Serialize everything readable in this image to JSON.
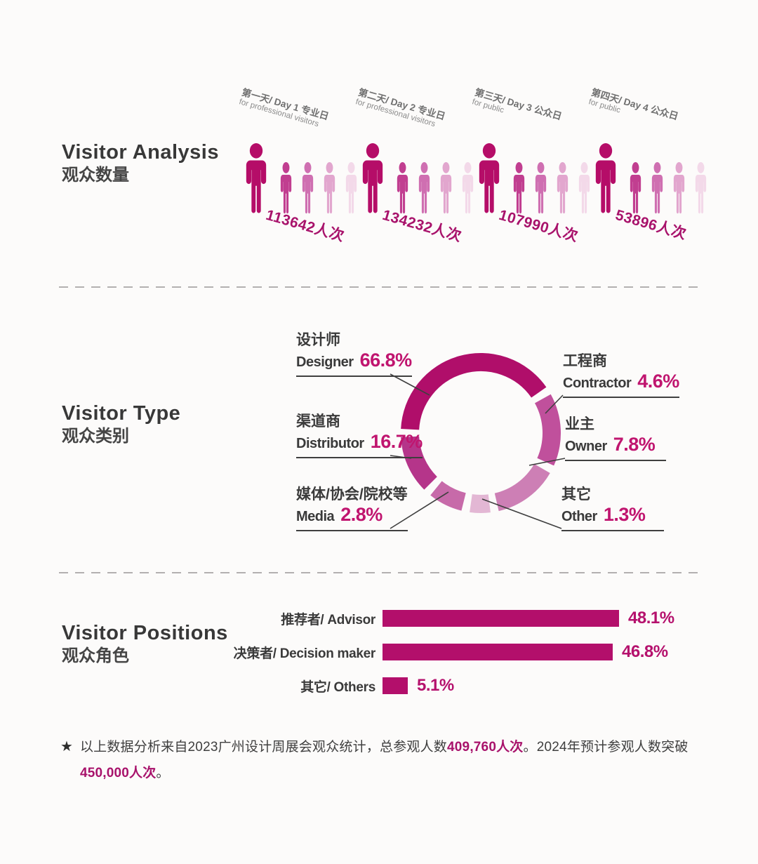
{
  "colors": {
    "accent_dark": "#b50d68",
    "accent": "#c0156f",
    "bar_fill": "#b30f6b",
    "title_text": "#383838",
    "callout_line": "#3f3f3f"
  },
  "sections": {
    "visitor_analysis": {
      "title_en": "Visitor Analysis",
      "title_zh": "观众数量",
      "days": [
        {
          "label_zh": "第一天/ Day 1 专业日",
          "label_en": "for professional visitors",
          "count": "113642人次"
        },
        {
          "label_zh": "第二天/ Day 2 专业日",
          "label_en": "for professional visitors",
          "count": "134232人次"
        },
        {
          "label_zh": "第三天/ Day 3 公众日",
          "label_en": "for public",
          "count": "107990人次"
        },
        {
          "label_zh": "第四天/ Day 4 公众日",
          "label_en": "for public",
          "count": "53896人次"
        }
      ],
      "people_colors": [
        "#b50d68",
        "#c13e90",
        "#cf6fb1",
        "#e2a6ce",
        "#f3d9e9"
      ]
    },
    "visitor_type": {
      "title_en": "Visitor Type",
      "title_zh": "观众类别",
      "labels": [
        {
          "zh": "设计师",
          "en": "Designer",
          "value": "66.8%"
        },
        {
          "zh": "工程商",
          "en": "Contractor",
          "value": "4.6%"
        },
        {
          "zh": "渠道商",
          "en": "Distributor",
          "value": "16.7%"
        },
        {
          "zh": "业主",
          "en": "Owner",
          "value": "7.8%"
        },
        {
          "zh": "媒体/协会/院校等",
          "en": "Media",
          "value": "2.8%"
        },
        {
          "zh": "其它",
          "en": "Other",
          "value": "1.3%"
        }
      ],
      "segments": [
        {
          "name": "designer",
          "color": "#b00e6a",
          "start": 273,
          "end": 415
        },
        {
          "name": "contractor",
          "color": "#c0509c",
          "start": 61,
          "end": 114
        },
        {
          "name": "owner",
          "color": "#cd7fb5",
          "start": 120,
          "end": 167
        },
        {
          "name": "other",
          "color": "#e3b7d4",
          "start": 173,
          "end": 188
        },
        {
          "name": "media",
          "color": "#c76aa9",
          "start": 194,
          "end": 219
        },
        {
          "name": "distributor",
          "color": "#b5358a",
          "start": 225,
          "end": 267
        }
      ],
      "callouts": [
        [
          556,
          123,
          612,
          153
        ],
        [
          802,
          153,
          777,
          179
        ],
        [
          556,
          239,
          586,
          243
        ],
        [
          805,
          243,
          754,
          253
        ],
        [
          556,
          343,
          639,
          291
        ],
        [
          800,
          343,
          687,
          301
        ]
      ]
    },
    "visitor_positions": {
      "title_en": "Visitor Positions",
      "title_zh": "观众角色",
      "rows": [
        {
          "label": "推荐者/ Advisor",
          "value": "48.1%"
        },
        {
          "label": "决策者/ Decision maker",
          "value": "46.8%"
        },
        {
          "label": "其它/ Others",
          "value": "5.1%"
        }
      ]
    },
    "footnote": {
      "star": "★",
      "part1": "以上数据分析来自2023广州设计周展会观众统计，总参观人数",
      "bold1": "409,760人次",
      "part2": "。2024年预计参观人数突破",
      "bold2": "450,000人次",
      "part3": "。"
    }
  },
  "chart_data": [
    {
      "type": "bar",
      "subtype": "pictogram",
      "title": "Visitor Analysis 观众数量",
      "categories": [
        "第一天/ Day 1 专业日 for professional visitors",
        "第二天/ Day 2 专业日 for professional visitors",
        "第三天/ Day 3 公众日 for public",
        "第四天/ Day 4 公众日 for public"
      ],
      "values": [
        113642,
        134232,
        107990,
        53896
      ],
      "unit": "人次"
    },
    {
      "type": "pie",
      "subtype": "donut",
      "title": "Visitor Type 观众类别",
      "labels": [
        "设计师 Designer",
        "工程商 Contractor",
        "渠道商 Distributor",
        "业主 Owner",
        "媒体/协会/院校等 Media",
        "其它 Other"
      ],
      "values": [
        66.8,
        4.6,
        16.7,
        7.8,
        2.8,
        1.3
      ],
      "unit": "%",
      "legend_position": "callout-labels"
    },
    {
      "type": "bar",
      "orientation": "horizontal",
      "title": "Visitor Positions 观众角色",
      "categories": [
        "推荐者/ Advisor",
        "决策者/ Decision maker",
        "其它/ Others"
      ],
      "values": [
        48.1,
        46.8,
        5.1
      ],
      "unit": "%",
      "xlim": [
        0,
        55
      ],
      "grid": false
    }
  ]
}
